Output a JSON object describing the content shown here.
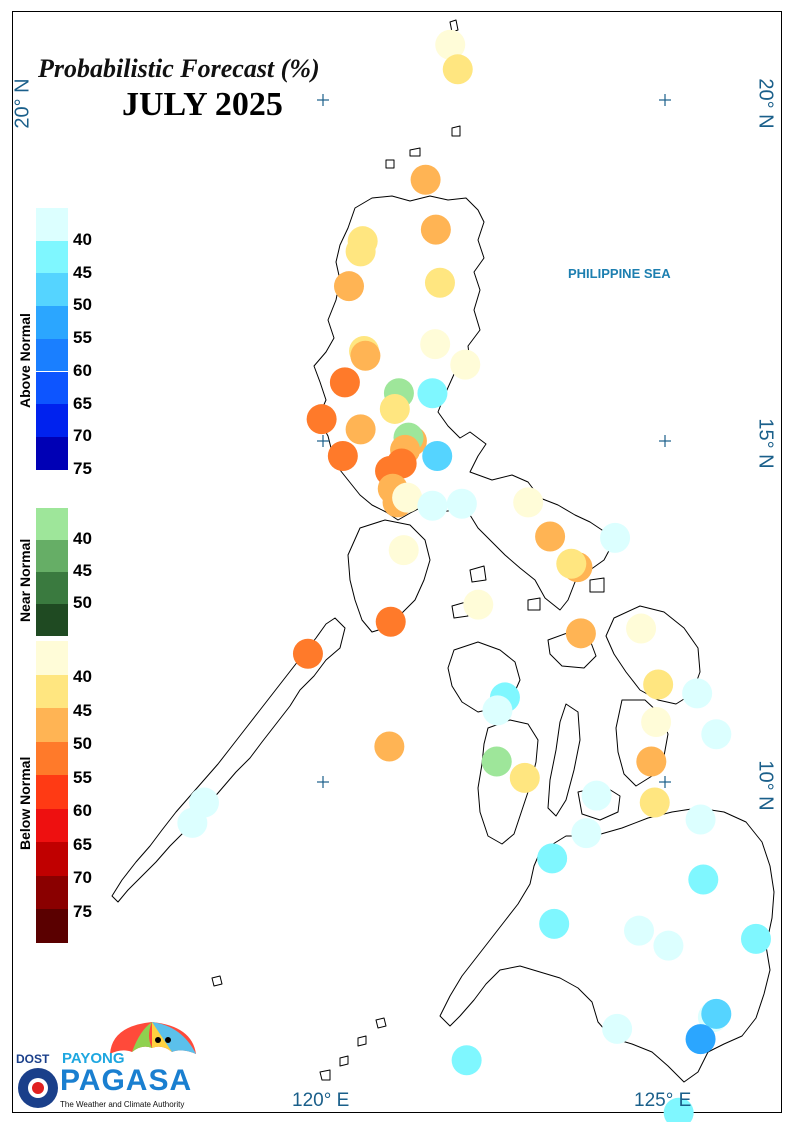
{
  "title": {
    "line1": "Probabilistic Forecast (%)",
    "line2": "JULY 2025"
  },
  "axes": {
    "lat_labels": [
      "20° N",
      "15° N",
      "10° N"
    ],
    "lon_labels": [
      "120° E",
      "125° E"
    ]
  },
  "sea_label": "PHILIPPINE SEA",
  "legend": {
    "above": {
      "label": "Above Normal",
      "values": [
        "40",
        "45",
        "50",
        "55",
        "60",
        "65",
        "70",
        "75"
      ],
      "colors": [
        "#dcffff",
        "#7ff7ff",
        "#55d4ff",
        "#2ba6ff",
        "#1a7fff",
        "#0d55ff",
        "#0022ee",
        "#0000b5"
      ]
    },
    "near": {
      "label": "Near Normal",
      "values": [
        "40",
        "45",
        "50"
      ],
      "colors": [
        "#9ee69a",
        "#66ae66",
        "#3a7a3f",
        "#1f4a22"
      ]
    },
    "below": {
      "label": "Below Normal",
      "values": [
        "40",
        "45",
        "50",
        "55",
        "60",
        "65",
        "70",
        "75"
      ],
      "colors": [
        "#fffcd8",
        "#ffe680",
        "#ffb454",
        "#ff7a2a",
        "#ff3a14",
        "#ee1010",
        "#c00000",
        "#8a0000",
        "#5a0000"
      ]
    }
  },
  "logo": {
    "org": "DOST",
    "brand_top": "PAYONG",
    "brand": "PAGASA",
    "tagline": "The Weather and Climate Authority"
  },
  "stations": [
    {
      "lon": 121.86,
      "lat": 20.81,
      "cat": "below",
      "p": 40
    },
    {
      "lon": 121.97,
      "lat": 20.45,
      "cat": "below",
      "p": 45
    },
    {
      "lon": 121.5,
      "lat": 18.83,
      "cat": "below",
      "p": 50
    },
    {
      "lon": 121.65,
      "lat": 18.1,
      "cat": "below",
      "p": 50
    },
    {
      "lon": 120.58,
      "lat": 17.93,
      "cat": "below",
      "p": 45
    },
    {
      "lon": 120.55,
      "lat": 17.78,
      "cat": "below",
      "p": 45
    },
    {
      "lon": 120.38,
      "lat": 17.27,
      "cat": "below",
      "p": 50
    },
    {
      "lon": 121.71,
      "lat": 17.32,
      "cat": "below",
      "p": 45
    },
    {
      "lon": 121.64,
      "lat": 16.42,
      "cat": "below",
      "p": 40
    },
    {
      "lon": 120.6,
      "lat": 16.32,
      "cat": "below",
      "p": 45
    },
    {
      "lon": 120.62,
      "lat": 16.25,
      "cat": "below",
      "p": 50
    },
    {
      "lon": 122.08,
      "lat": 16.12,
      "cat": "below",
      "p": 40
    },
    {
      "lon": 120.32,
      "lat": 15.86,
      "cat": "below",
      "p": 55
    },
    {
      "lon": 121.11,
      "lat": 15.7,
      "cat": "near",
      "p": 40
    },
    {
      "lon": 121.6,
      "lat": 15.7,
      "cat": "above",
      "p": 45
    },
    {
      "lon": 121.05,
      "lat": 15.47,
      "cat": "below",
      "p": 45
    },
    {
      "lon": 119.98,
      "lat": 15.32,
      "cat": "below",
      "p": 55
    },
    {
      "lon": 120.55,
      "lat": 15.17,
      "cat": "below",
      "p": 50
    },
    {
      "lon": 121.3,
      "lat": 15.0,
      "cat": "below",
      "p": 50
    },
    {
      "lon": 121.25,
      "lat": 15.05,
      "cat": "near",
      "p": 40
    },
    {
      "lon": 121.2,
      "lat": 14.87,
      "cat": "below",
      "p": 50
    },
    {
      "lon": 120.29,
      "lat": 14.78,
      "cat": "below",
      "p": 55
    },
    {
      "lon": 121.67,
      "lat": 14.78,
      "cat": "above",
      "p": 50
    },
    {
      "lon": 121.15,
      "lat": 14.67,
      "cat": "below",
      "p": 55
    },
    {
      "lon": 120.98,
      "lat": 14.56,
      "cat": "below",
      "p": 55
    },
    {
      "lon": 121.02,
      "lat": 14.3,
      "cat": "below",
      "p": 50
    },
    {
      "lon": 121.09,
      "lat": 14.1,
      "cat": "below",
      "p": 50
    },
    {
      "lon": 121.23,
      "lat": 14.17,
      "cat": "below",
      "p": 40
    },
    {
      "lon": 121.6,
      "lat": 14.05,
      "cat": "above",
      "p": 40
    },
    {
      "lon": 122.03,
      "lat": 14.08,
      "cat": "above",
      "p": 40
    },
    {
      "lon": 123.0,
      "lat": 14.1,
      "cat": "below",
      "p": 40
    },
    {
      "lon": 123.32,
      "lat": 13.6,
      "cat": "below",
      "p": 50
    },
    {
      "lon": 124.27,
      "lat": 13.58,
      "cat": "above",
      "p": 40
    },
    {
      "lon": 121.18,
      "lat": 13.4,
      "cat": "below",
      "p": 40
    },
    {
      "lon": 123.72,
      "lat": 13.15,
      "cat": "below",
      "p": 50
    },
    {
      "lon": 123.63,
      "lat": 13.2,
      "cat": "below",
      "p": 45
    },
    {
      "lon": 122.27,
      "lat": 12.6,
      "cat": "below",
      "p": 40
    },
    {
      "lon": 120.99,
      "lat": 12.35,
      "cat": "below",
      "p": 55
    },
    {
      "lon": 123.77,
      "lat": 12.18,
      "cat": "below",
      "p": 50
    },
    {
      "lon": 124.65,
      "lat": 12.25,
      "cat": "below",
      "p": 40
    },
    {
      "lon": 119.78,
      "lat": 11.88,
      "cat": "below",
      "p": 55
    },
    {
      "lon": 124.9,
      "lat": 11.43,
      "cat": "below",
      "p": 45
    },
    {
      "lon": 125.47,
      "lat": 11.3,
      "cat": "above",
      "p": 40
    },
    {
      "lon": 122.66,
      "lat": 11.24,
      "cat": "above",
      "p": 45
    },
    {
      "lon": 122.55,
      "lat": 11.05,
      "cat": "above",
      "p": 40
    },
    {
      "lon": 124.87,
      "lat": 10.88,
      "cat": "below",
      "p": 40
    },
    {
      "lon": 125.75,
      "lat": 10.7,
      "cat": "above",
      "p": 40
    },
    {
      "lon": 120.97,
      "lat": 10.52,
      "cat": "below",
      "p": 50
    },
    {
      "lon": 122.54,
      "lat": 10.3,
      "cat": "near",
      "p": 40
    },
    {
      "lon": 124.8,
      "lat": 10.3,
      "cat": "below",
      "p": 50
    },
    {
      "lon": 122.95,
      "lat": 10.06,
      "cat": "below",
      "p": 45
    },
    {
      "lon": 124.0,
      "lat": 9.8,
      "cat": "above",
      "p": 40
    },
    {
      "lon": 124.85,
      "lat": 9.7,
      "cat": "below",
      "p": 45
    },
    {
      "lon": 118.26,
      "lat": 9.7,
      "cat": "above",
      "p": 40
    },
    {
      "lon": 118.09,
      "lat": 9.4,
      "cat": "above",
      "p": 40
    },
    {
      "lon": 125.52,
      "lat": 9.45,
      "cat": "above",
      "p": 40
    },
    {
      "lon": 123.85,
      "lat": 9.25,
      "cat": "above",
      "p": 40
    },
    {
      "lon": 123.35,
      "lat": 8.88,
      "cat": "above",
      "p": 45
    },
    {
      "lon": 125.56,
      "lat": 8.57,
      "cat": "above",
      "p": 45
    },
    {
      "lon": 123.38,
      "lat": 7.92,
      "cat": "above",
      "p": 45
    },
    {
      "lon": 124.62,
      "lat": 7.82,
      "cat": "above",
      "p": 40
    },
    {
      "lon": 125.05,
      "lat": 7.6,
      "cat": "above",
      "p": 40
    },
    {
      "lon": 126.33,
      "lat": 7.7,
      "cat": "above",
      "p": 45
    },
    {
      "lon": 125.7,
      "lat": 6.55,
      "cat": "above",
      "p": 40
    },
    {
      "lon": 125.75,
      "lat": 6.6,
      "cat": "above",
      "p": 50
    },
    {
      "lon": 124.3,
      "lat": 6.38,
      "cat": "above",
      "p": 40
    },
    {
      "lon": 125.52,
      "lat": 6.23,
      "cat": "above",
      "p": 55
    },
    {
      "lon": 122.1,
      "lat": 5.92,
      "cat": "above",
      "p": 45
    },
    {
      "lon": 125.2,
      "lat": 5.15,
      "cat": "above",
      "p": 45
    }
  ]
}
